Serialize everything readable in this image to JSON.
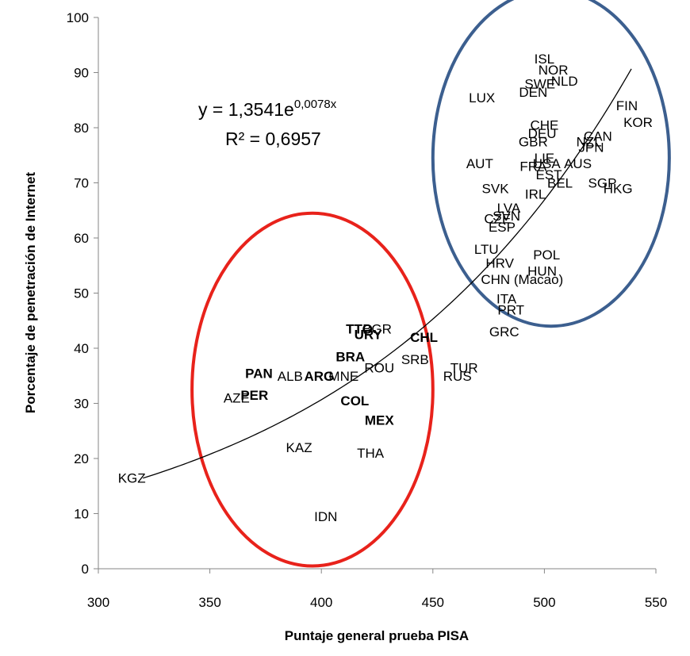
{
  "chart_data": {
    "type": "scatter",
    "title": "",
    "xlabel": "Puntaje general prueba PISA",
    "ylabel": "Porcentaje de penetración de Internet",
    "xlim": [
      300,
      550
    ],
    "ylim": [
      0,
      100
    ],
    "xticks": [
      "300",
      "350",
      "400",
      "450",
      "500",
      "550"
    ],
    "yticks": [
      "0",
      "10",
      "20",
      "30",
      "40",
      "50",
      "60",
      "70",
      "80",
      "90",
      "100"
    ],
    "grid": false,
    "trendline": {
      "type": "exponential",
      "a": 1.3541,
      "b": 0.0078,
      "x_range": [
        320,
        539
      ],
      "equation_prefix": "y = 1,3541e",
      "equation_exponent": "0,0078x",
      "r2_label": "R² = 0,6957"
    },
    "ellipses": [
      {
        "name": "circle-top-right",
        "cx": 503,
        "cy": 74.5,
        "rx": 53,
        "ry": 30.5,
        "color": "#3c5f8f"
      },
      {
        "name": "circle-bottom-left",
        "cx": 396,
        "cy": 32.5,
        "rx": 54,
        "ry": 32,
        "color": "#e8221b"
      }
    ],
    "points": [
      {
        "label": "ISL",
        "x": 500,
        "y": 92.5,
        "bold": false
      },
      {
        "label": "NOR",
        "x": 504,
        "y": 90.5,
        "bold": false
      },
      {
        "label": "NLD",
        "x": 509,
        "y": 88.5,
        "bold": false
      },
      {
        "label": "SWE",
        "x": 498,
        "y": 88.0,
        "bold": false
      },
      {
        "label": "DEN",
        "x": 495,
        "y": 86.5,
        "bold": false
      },
      {
        "label": "LUX",
        "x": 472,
        "y": 85.5,
        "bold": false
      },
      {
        "label": "FIN",
        "x": 537,
        "y": 84.0,
        "bold": false
      },
      {
        "label": "KOR",
        "x": 542,
        "y": 81.0,
        "bold": false
      },
      {
        "label": "CHE",
        "x": 500,
        "y": 80.5,
        "bold": false
      },
      {
        "label": "DEU",
        "x": 499,
        "y": 79.0,
        "bold": false
      },
      {
        "label": "CAN",
        "x": 524,
        "y": 78.5,
        "bold": false
      },
      {
        "label": "GBR",
        "x": 495,
        "y": 77.5,
        "bold": false
      },
      {
        "label": "NZL",
        "x": 520,
        "y": 77.5,
        "bold": false
      },
      {
        "label": "JPN",
        "x": 521,
        "y": 76.5,
        "bold": false
      },
      {
        "label": "LIE",
        "x": 500,
        "y": 74.5,
        "bold": false
      },
      {
        "label": "USA",
        "x": 501,
        "y": 73.5,
        "bold": false
      },
      {
        "label": "AUS",
        "x": 515,
        "y": 73.5,
        "bold": false
      },
      {
        "label": "AUT",
        "x": 471,
        "y": 73.5,
        "bold": false
      },
      {
        "label": "FRA",
        "x": 495,
        "y": 73.0,
        "bold": false
      },
      {
        "label": "EST",
        "x": 502,
        "y": 71.5,
        "bold": false
      },
      {
        "label": "BEL",
        "x": 507,
        "y": 70.0,
        "bold": false
      },
      {
        "label": "SGP",
        "x": 526,
        "y": 70.0,
        "bold": false
      },
      {
        "label": "HKG",
        "x": 533,
        "y": 69.0,
        "bold": false
      },
      {
        "label": "SVK",
        "x": 478,
        "y": 69.0,
        "bold": false
      },
      {
        "label": "IRL",
        "x": 496,
        "y": 68.0,
        "bold": false
      },
      {
        "label": "LVA",
        "x": 484,
        "y": 65.5,
        "bold": false
      },
      {
        "label": "SVN",
        "x": 483,
        "y": 64.0,
        "bold": false
      },
      {
        "label": "CZE",
        "x": 479,
        "y": 63.5,
        "bold": false
      },
      {
        "label": "ESP",
        "x": 481,
        "y": 62.0,
        "bold": false
      },
      {
        "label": "LTU",
        "x": 474,
        "y": 58.0,
        "bold": false
      },
      {
        "label": "POL",
        "x": 501,
        "y": 57.0,
        "bold": false
      },
      {
        "label": "HRV",
        "x": 480,
        "y": 55.5,
        "bold": false
      },
      {
        "label": "HUN",
        "x": 499,
        "y": 54.0,
        "bold": false
      },
      {
        "label": "CHN (Macao)",
        "x": 490,
        "y": 52.5,
        "bold": false
      },
      {
        "label": "ITA",
        "x": 483,
        "y": 49.0,
        "bold": false
      },
      {
        "label": "PRT",
        "x": 485,
        "y": 47.0,
        "bold": false
      },
      {
        "label": "GRC",
        "x": 482,
        "y": 43.0,
        "bold": false
      },
      {
        "label": "TTO",
        "x": 417,
        "y": 43.5,
        "bold": true
      },
      {
        "label": "BGR",
        "x": 425,
        "y": 43.5,
        "bold": false
      },
      {
        "label": "URY",
        "x": 421,
        "y": 42.5,
        "bold": true
      },
      {
        "label": "CHL",
        "x": 446,
        "y": 42.0,
        "bold": true
      },
      {
        "label": "BRA",
        "x": 413,
        "y": 38.5,
        "bold": true
      },
      {
        "label": "SRB",
        "x": 442,
        "y": 38.0,
        "bold": false
      },
      {
        "label": "ROU",
        "x": 426,
        "y": 36.5,
        "bold": false
      },
      {
        "label": "TUR",
        "x": 464,
        "y": 36.5,
        "bold": false
      },
      {
        "label": "PAN",
        "x": 372,
        "y": 35.5,
        "bold": true
      },
      {
        "label": "MNE",
        "x": 410,
        "y": 35.0,
        "bold": false
      },
      {
        "label": "ARG",
        "x": 399,
        "y": 35.0,
        "bold": true
      },
      {
        "label": "ALB",
        "x": 386,
        "y": 35.0,
        "bold": false
      },
      {
        "label": "RUS",
        "x": 461,
        "y": 35.0,
        "bold": false
      },
      {
        "label": "PER",
        "x": 370,
        "y": 31.5,
        "bold": true
      },
      {
        "label": "AZE",
        "x": 362,
        "y": 31.0,
        "bold": false
      },
      {
        "label": "COL",
        "x": 415,
        "y": 30.5,
        "bold": true
      },
      {
        "label": "MEX",
        "x": 426,
        "y": 27.0,
        "bold": true
      },
      {
        "label": "KAZ",
        "x": 390,
        "y": 22.0,
        "bold": false
      },
      {
        "label": "THA",
        "x": 422,
        "y": 21.0,
        "bold": false
      },
      {
        "label": "KGZ",
        "x": 315,
        "y": 16.5,
        "bold": false
      },
      {
        "label": "IDN",
        "x": 402,
        "y": 9.5,
        "bold": false
      }
    ]
  }
}
